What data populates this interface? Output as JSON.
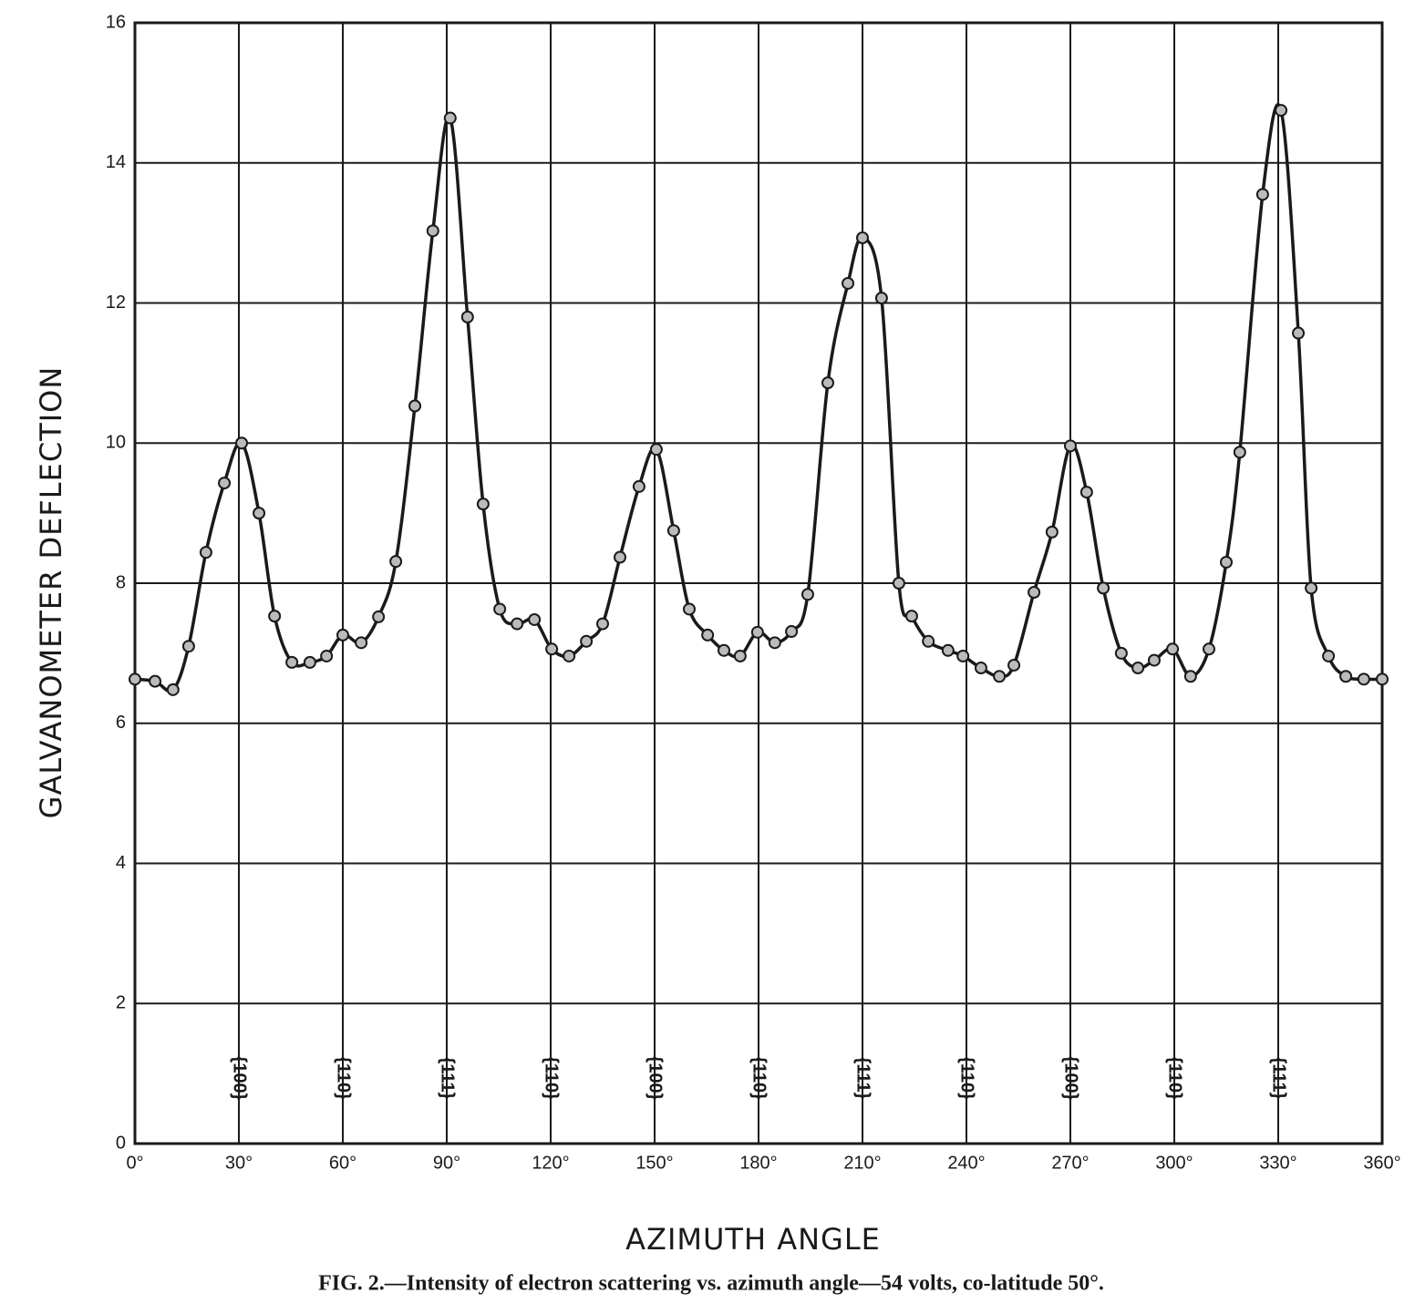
{
  "chart_data": {
    "type": "line",
    "x_label": "AZIMUTH ANGLE",
    "y_label": "GALVANOMETER DEFLECTION",
    "caption": "FIG. 2.—Intensity of electron scattering vs. azimuth angle—54 volts, co-latitude 50°.",
    "color": "#1a1a1a",
    "grid": true,
    "xlim": [
      0,
      360
    ],
    "ylim": [
      0,
      16
    ],
    "xticks": [
      {
        "value": 0,
        "label": "0°"
      },
      {
        "value": 30,
        "label": "30°"
      },
      {
        "value": 60,
        "label": "60°"
      },
      {
        "value": 90,
        "label": "90°"
      },
      {
        "value": 120,
        "label": "120°"
      },
      {
        "value": 150,
        "label": "150°"
      },
      {
        "value": 180,
        "label": "180°"
      },
      {
        "value": 210,
        "label": "210°"
      },
      {
        "value": 240,
        "label": "240°"
      },
      {
        "value": 270,
        "label": "270°"
      },
      {
        "value": 300,
        "label": "300°"
      },
      {
        "value": 330,
        "label": "330°"
      },
      {
        "value": 360,
        "label": "360°"
      }
    ],
    "yticks": [
      0,
      2,
      4,
      6,
      8,
      10,
      12,
      14,
      16
    ],
    "annotations": [
      {
        "x": 30,
        "text": "{100}"
      },
      {
        "x": 60,
        "text": "{110}"
      },
      {
        "x": 90,
        "text": "{111}"
      },
      {
        "x": 120,
        "text": "{110}"
      },
      {
        "x": 150,
        "text": "{100}"
      },
      {
        "x": 180,
        "text": "{110}"
      },
      {
        "x": 210,
        "text": "{111}"
      },
      {
        "x": 240,
        "text": "{110}"
      },
      {
        "x": 270,
        "text": "{100}"
      },
      {
        "x": 300,
        "text": "{110}"
      },
      {
        "x": 330,
        "text": "{111}"
      }
    ],
    "x": [
      0,
      5.8,
      11,
      15.5,
      20.5,
      25.8,
      30.8,
      35.8,
      40.3,
      45.3,
      50.5,
      55.3,
      60,
      65.3,
      70.3,
      75.3,
      80.8,
      86,
      91,
      96,
      100.5,
      105.3,
      110.3,
      115.3,
      120.3,
      125.3,
      130.3,
      135,
      140,
      145.5,
      150.5,
      155.5,
      160,
      165.3,
      170,
      174.7,
      179.7,
      184.7,
      189.5,
      194.2,
      200,
      205.8,
      210,
      215.5,
      220.5,
      224.2,
      229,
      234.7,
      239,
      244.2,
      249.5,
      253.7,
      259.5,
      264.7,
      270,
      274.7,
      279.5,
      284.7,
      289.5,
      294.2,
      299.5,
      304.7,
      310,
      315,
      318.9,
      325.5,
      330.8,
      335.8,
      339.5,
      344.5,
      349.5,
      354.7,
      360
    ],
    "values": [
      6.63,
      6.6,
      6.48,
      7.1,
      8.44,
      9.43,
      10.0,
      9.0,
      7.53,
      6.87,
      6.87,
      6.96,
      7.26,
      7.15,
      7.52,
      8.31,
      10.53,
      13.03,
      14.64,
      11.8,
      9.13,
      7.63,
      7.42,
      7.48,
      7.06,
      6.96,
      7.17,
      7.42,
      8.37,
      9.38,
      9.91,
      8.75,
      7.63,
      7.26,
      7.04,
      6.96,
      7.3,
      7.15,
      7.31,
      7.84,
      10.86,
      12.28,
      12.93,
      12.07,
      8.0,
      7.53,
      7.17,
      7.04,
      6.96,
      6.79,
      6.67,
      6.83,
      7.87,
      8.73,
      9.96,
      9.3,
      7.93,
      7.0,
      6.79,
      6.9,
      7.06,
      6.67,
      7.06,
      8.3,
      9.87,
      13.55,
      14.75,
      11.57,
      7.93,
      6.96,
      6.67,
      6.63,
      6.63
    ]
  }
}
